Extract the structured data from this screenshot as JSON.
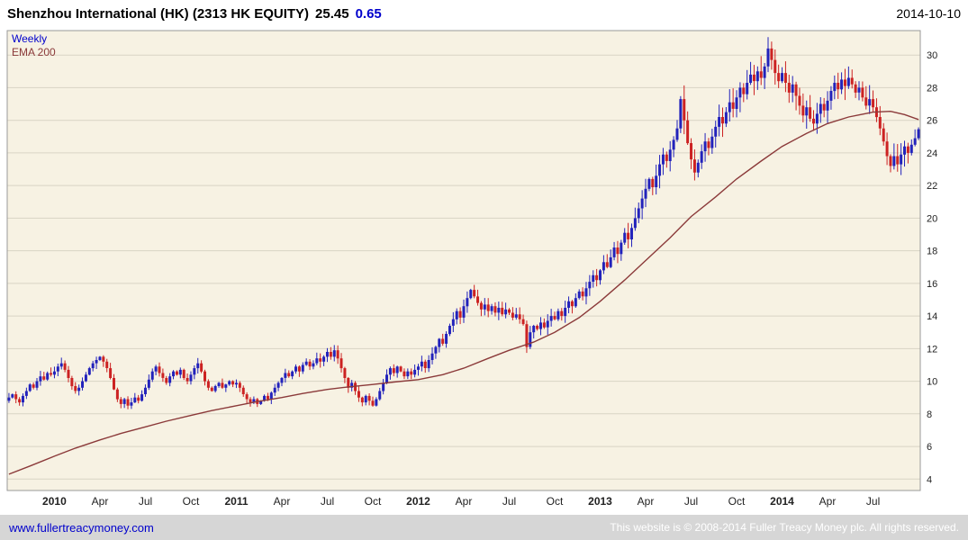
{
  "header": {
    "title": "Shenzhou International (HK) (2313 HK EQUITY)",
    "price": "25.45",
    "change": "0.65",
    "date": "2014-10-10"
  },
  "legend": [
    {
      "label": "Weekly",
      "color": "#0000cc"
    },
    {
      "label": "EMA 200",
      "color": "#8b3a3a"
    }
  ],
  "footer": {
    "link": "www.fullertreacymoney.com",
    "copyright": "This website is © 2008-2014 Fuller Treacy Money plc. All rights reserved."
  },
  "chart_data": {
    "type": "candlestick",
    "title": "Shenzhou International (HK) (2313 HK EQUITY)",
    "frequency": "Weekly",
    "overlay": "EMA 200",
    "last_price": 25.45,
    "change": 0.65,
    "date": "2014-10-10",
    "ylim": [
      3.3,
      31.5
    ],
    "yticks": [
      4,
      6,
      8,
      10,
      12,
      14,
      16,
      18,
      20,
      22,
      24,
      26,
      28,
      30
    ],
    "x_axis_labels": [
      {
        "week": 13,
        "label": "2010"
      },
      {
        "week": 26,
        "label": "Apr"
      },
      {
        "week": 39,
        "label": "Jul"
      },
      {
        "week": 52,
        "label": "Oct"
      },
      {
        "week": 65,
        "label": "2011"
      },
      {
        "week": 78,
        "label": "Apr"
      },
      {
        "week": 91,
        "label": "Jul"
      },
      {
        "week": 104,
        "label": "Oct"
      },
      {
        "week": 117,
        "label": "2012"
      },
      {
        "week": 130,
        "label": "Apr"
      },
      {
        "week": 143,
        "label": "Jul"
      },
      {
        "week": 156,
        "label": "Oct"
      },
      {
        "week": 169,
        "label": "2013"
      },
      {
        "week": 182,
        "label": "Apr"
      },
      {
        "week": 195,
        "label": "Jul"
      },
      {
        "week": 208,
        "label": "Oct"
      },
      {
        "week": 221,
        "label": "2014"
      },
      {
        "week": 234,
        "label": "Apr"
      },
      {
        "week": 247,
        "label": "Jul"
      }
    ],
    "weeks_total": 261,
    "closes": [
      9.0,
      9.2,
      8.9,
      8.7,
      9.1,
      9.4,
      9.8,
      9.6,
      10.0,
      10.3,
      10.1,
      10.5,
      10.4,
      10.6,
      10.9,
      11.1,
      10.7,
      10.2,
      9.7,
      9.4,
      9.6,
      10.0,
      10.4,
      10.8,
      11.1,
      11.3,
      11.5,
      11.2,
      10.8,
      10.2,
      9.5,
      8.9,
      8.6,
      8.9,
      8.5,
      8.7,
      9.0,
      8.8,
      9.2,
      9.6,
      10.1,
      10.6,
      10.9,
      10.5,
      10.2,
      9.9,
      10.3,
      10.6,
      10.4,
      10.7,
      10.2,
      10.0,
      10.4,
      10.8,
      11.1,
      10.6,
      10.0,
      9.6,
      9.4,
      9.7,
      9.9,
      9.6,
      9.8,
      10.0,
      9.8,
      9.9,
      9.6,
      9.2,
      8.9,
      8.7,
      8.9,
      8.6,
      8.8,
      9.1,
      8.9,
      9.3,
      9.6,
      9.9,
      10.2,
      10.5,
      10.3,
      10.6,
      10.9,
      10.6,
      11.0,
      11.2,
      10.9,
      11.1,
      11.4,
      11.2,
      11.5,
      11.8,
      11.5,
      11.9,
      11.4,
      10.8,
      10.2,
      9.6,
      9.9,
      9.4,
      9.0,
      8.7,
      9.1,
      8.8,
      8.5,
      8.9,
      9.4,
      9.9,
      10.4,
      10.8,
      10.5,
      10.9,
      10.6,
      10.3,
      10.6,
      10.4,
      10.7,
      10.9,
      11.2,
      10.8,
      11.3,
      11.7,
      12.1,
      12.6,
      12.3,
      12.9,
      13.4,
      13.8,
      14.3,
      13.9,
      14.6,
      15.1,
      15.6,
      15.2,
      14.8,
      14.4,
      14.7,
      14.3,
      14.6,
      14.2,
      14.5,
      14.1,
      14.4,
      14.2,
      13.9,
      14.1,
      13.8,
      13.5,
      12.1,
      13.0,
      13.4,
      13.2,
      13.6,
      13.3,
      13.7,
      14.0,
      13.8,
      14.3,
      14.0,
      14.5,
      14.9,
      14.6,
      15.1,
      15.5,
      15.2,
      15.7,
      16.1,
      16.5,
      16.2,
      16.8,
      17.3,
      17.0,
      17.6,
      18.2,
      17.8,
      18.5,
      19.1,
      18.7,
      19.4,
      20.0,
      20.6,
      21.2,
      21.8,
      22.4,
      21.9,
      22.6,
      23.3,
      23.9,
      23.5,
      24.2,
      24.8,
      25.5,
      27.3,
      26.0,
      24.6,
      23.6,
      22.8,
      23.4,
      24.1,
      24.7,
      24.3,
      25.0,
      25.6,
      26.2,
      25.8,
      26.5,
      27.1,
      26.7,
      27.4,
      28.0,
      27.6,
      28.3,
      28.8,
      28.4,
      29.0,
      28.6,
      29.3,
      30.4,
      29.7,
      28.9,
      28.4,
      28.9,
      28.3,
      27.7,
      28.2,
      27.5,
      26.9,
      26.3,
      26.8,
      26.1,
      25.8,
      26.4,
      27.0,
      26.6,
      27.2,
      27.8,
      28.3,
      27.9,
      28.5,
      28.1,
      28.6,
      28.2,
      27.7,
      28.0,
      27.4,
      26.9,
      27.3,
      26.8,
      26.2,
      25.5,
      24.7,
      23.8,
      23.2,
      23.8,
      23.3,
      23.9,
      24.4,
      24.0,
      24.5,
      24.9,
      25.45
    ],
    "ema_anchors": [
      [
        0,
        4.3
      ],
      [
        6,
        4.8
      ],
      [
        13,
        5.4
      ],
      [
        19,
        5.9
      ],
      [
        26,
        6.4
      ],
      [
        32,
        6.8
      ],
      [
        39,
        7.2
      ],
      [
        45,
        7.55
      ],
      [
        52,
        7.9
      ],
      [
        58,
        8.2
      ],
      [
        65,
        8.5
      ],
      [
        71,
        8.75
      ],
      [
        78,
        9.0
      ],
      [
        84,
        9.25
      ],
      [
        91,
        9.5
      ],
      [
        97,
        9.65
      ],
      [
        104,
        9.8
      ],
      [
        110,
        9.95
      ],
      [
        117,
        10.1
      ],
      [
        124,
        10.4
      ],
      [
        130,
        10.8
      ],
      [
        137,
        11.4
      ],
      [
        143,
        11.9
      ],
      [
        150,
        12.4
      ],
      [
        156,
        13.0
      ],
      [
        163,
        13.9
      ],
      [
        169,
        14.9
      ],
      [
        176,
        16.2
      ],
      [
        182,
        17.4
      ],
      [
        189,
        18.8
      ],
      [
        195,
        20.1
      ],
      [
        202,
        21.3
      ],
      [
        208,
        22.4
      ],
      [
        215,
        23.5
      ],
      [
        221,
        24.4
      ],
      [
        228,
        25.2
      ],
      [
        234,
        25.8
      ],
      [
        240,
        26.2
      ],
      [
        247,
        26.5
      ],
      [
        252,
        26.55
      ],
      [
        256,
        26.35
      ],
      [
        260,
        26.05
      ]
    ],
    "colors": {
      "up": "#2222bb",
      "down": "#cc2222",
      "ema": "#8b3a3a",
      "plot_bg": "#f7f2e3",
      "grid": "#d9d4c5",
      "border": "#999999",
      "axis_text": "#222222"
    }
  }
}
